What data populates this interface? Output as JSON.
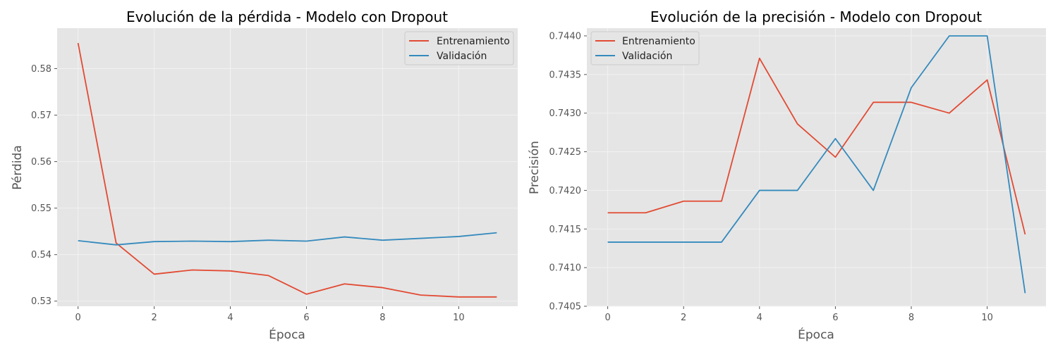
{
  "colors": {
    "train": "#E24A33",
    "val": "#348ABD",
    "panel_bg": "#E5E5E5",
    "grid": "#F2F2F2"
  },
  "chart_data": [
    {
      "type": "line",
      "title": "Evolución de la pérdida - Modelo con Dropout",
      "xlabel": "Época",
      "ylabel": "Pérdida",
      "x": [
        0,
        1,
        2,
        3,
        4,
        5,
        6,
        7,
        8,
        9,
        10,
        11
      ],
      "xlim": [
        -0.55,
        11.55
      ],
      "ylim": [
        0.5289,
        0.5887
      ],
      "xticks": [
        0,
        2,
        4,
        6,
        8,
        10
      ],
      "xtick_labels": [
        "0",
        "2",
        "4",
        "6",
        "8",
        "10"
      ],
      "yticks": [
        0.53,
        0.54,
        0.55,
        0.56,
        0.57,
        0.58
      ],
      "ytick_labels": [
        "0.53",
        "0.54",
        "0.55",
        "0.56",
        "0.57",
        "0.58"
      ],
      "grid": true,
      "legend_position": "upper right",
      "series": [
        {
          "name": "Entrenamiento",
          "color": "#E24A33",
          "values": [
            0.5855,
            0.5425,
            0.5358,
            0.5367,
            0.5365,
            0.5355,
            0.5315,
            0.5337,
            0.5329,
            0.5313,
            0.5309,
            0.5309
          ]
        },
        {
          "name": "Validación",
          "color": "#348ABD",
          "values": [
            0.543,
            0.5421,
            0.5428,
            0.5429,
            0.5428,
            0.5431,
            0.5429,
            0.5438,
            0.5431,
            0.5435,
            0.5439,
            0.5447
          ]
        }
      ]
    },
    {
      "type": "line",
      "title": "Evolución de la precisión - Modelo con Dropout",
      "xlabel": "Época",
      "ylabel": "Precisión",
      "x": [
        0,
        1,
        2,
        3,
        4,
        5,
        6,
        7,
        8,
        9,
        10,
        11
      ],
      "xlim": [
        -0.55,
        11.55
      ],
      "ylim": [
        0.7405,
        0.7441
      ],
      "xticks": [
        0,
        2,
        4,
        6,
        8,
        10
      ],
      "xtick_labels": [
        "0",
        "2",
        "4",
        "6",
        "8",
        "10"
      ],
      "yticks": [
        0.7405,
        0.741,
        0.7415,
        0.742,
        0.7425,
        0.743,
        0.7435,
        0.744
      ],
      "ytick_labels": [
        "0.7405",
        "0.7410",
        "0.7415",
        "0.7420",
        "0.7425",
        "0.7430",
        "0.7435",
        "0.7440"
      ],
      "grid": true,
      "legend_position": "upper left",
      "series": [
        {
          "name": "Entrenamiento",
          "color": "#E24A33",
          "values": [
            0.74171,
            0.74171,
            0.74186,
            0.74186,
            0.74371,
            0.74286,
            0.74243,
            0.74314,
            0.74314,
            0.743,
            0.74343,
            0.74143
          ]
        },
        {
          "name": "Validación",
          "color": "#348ABD",
          "values": [
            0.74133,
            0.74133,
            0.74133,
            0.74133,
            0.742,
            0.742,
            0.74267,
            0.742,
            0.74333,
            0.744,
            0.744,
            0.74067
          ]
        }
      ]
    }
  ]
}
